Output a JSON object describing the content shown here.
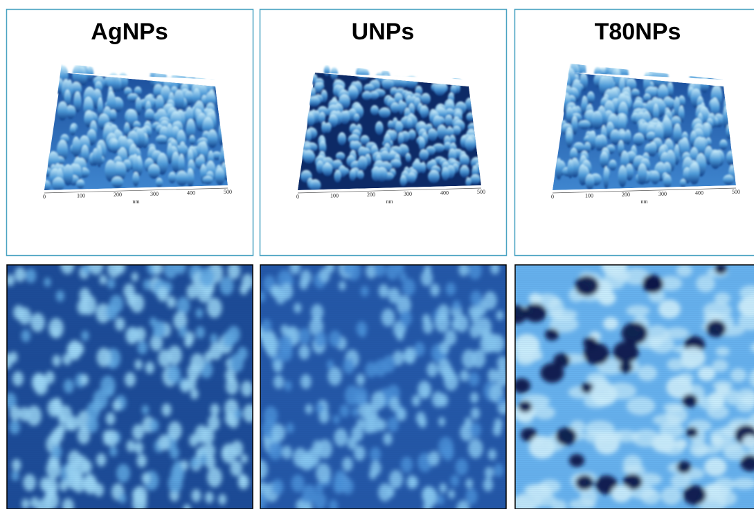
{
  "panels": [
    {
      "title": "AgNPs",
      "axis": {
        "ticks": [
          "0",
          "100",
          "200",
          "300",
          "400",
          "500"
        ],
        "unit": "nm"
      }
    },
    {
      "title": "UNPs",
      "axis": {
        "ticks": [
          "0",
          "100",
          "200",
          "300",
          "400",
          "500"
        ],
        "unit": "nm"
      }
    },
    {
      "title": "T80NPs",
      "axis": {
        "ticks": [
          "0",
          "100",
          "200",
          "300",
          "400",
          "500"
        ],
        "unit": "nm"
      }
    }
  ]
}
